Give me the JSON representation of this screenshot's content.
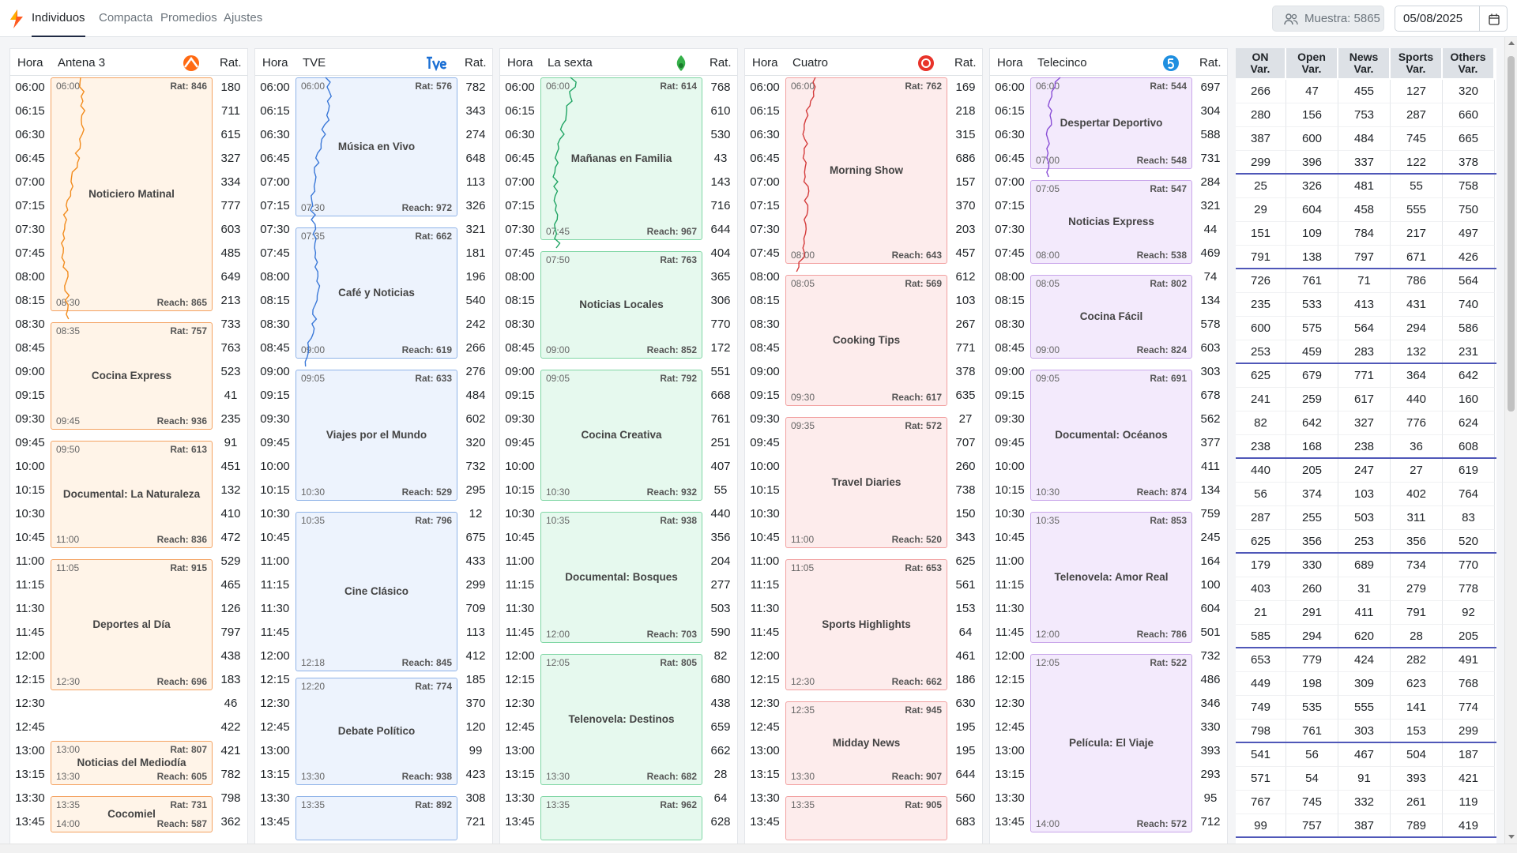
{
  "app": {
    "nav": [
      {
        "label": "Individuos",
        "active": true
      },
      {
        "label": "Compacta",
        "active": false
      },
      {
        "label": "Promedios",
        "active": false
      },
      {
        "label": "Ajustes",
        "active": false
      }
    ],
    "sample_label": "Muestra: 5865",
    "date_value": "05/08/2025"
  },
  "headers": {
    "hora": "Hora",
    "rat": "Rat."
  },
  "times": [
    "06:00",
    "06:15",
    "06:30",
    "06:45",
    "07:00",
    "07:15",
    "07:30",
    "07:45",
    "08:00",
    "08:15",
    "08:30",
    "08:45",
    "09:00",
    "09:15",
    "09:30",
    "09:45",
    "10:00",
    "10:15",
    "10:30",
    "10:45",
    "11:00",
    "11:15",
    "11:30",
    "11:45",
    "12:00",
    "12:15",
    "12:30",
    "12:45",
    "13:00",
    "13:15",
    "13:30",
    "13:45"
  ],
  "channels": [
    {
      "name": "Antena 3",
      "logo": "antena3-logo",
      "accent": "#f4a261",
      "bg": "#fff4e8",
      "line": "#f28c1e",
      "ratings": [
        180,
        711,
        615,
        327,
        334,
        777,
        603,
        485,
        649,
        213,
        733,
        763,
        523,
        41,
        235,
        91,
        451,
        132,
        410,
        472,
        529,
        465,
        126,
        797,
        438,
        183,
        46,
        422,
        421,
        782,
        798,
        362
      ],
      "programs": [
        {
          "title": "Noticiero Matinal",
          "start": "06:00",
          "end": "08:30",
          "rat": "Rat: 846",
          "reach": "Reach: 865",
          "s": 0,
          "d": 10
        },
        {
          "title": "Cocina Express",
          "start": "08:35",
          "end": "09:45",
          "rat": "Rat: 757",
          "reach": "Reach: 936",
          "s": 10.33,
          "d": 4.67
        },
        {
          "title": "Documental: La Naturaleza",
          "start": "09:50",
          "end": "11:00",
          "rat": "Rat: 613",
          "reach": "Reach: 836",
          "s": 15.33,
          "d": 4.67
        },
        {
          "title": "Deportes al Día",
          "start": "11:05",
          "end": "12:30",
          "rat": "Rat: 915",
          "reach": "Reach: 696",
          "s": 20.33,
          "d": 5.67
        },
        {
          "title": "Noticias del Mediodía",
          "start": "13:00",
          "end": "13:30",
          "rat": "Rat: 807",
          "reach": "Reach: 605",
          "s": 28,
          "d": 2
        },
        {
          "title": "Cocomiel",
          "start": "13:35",
          "end": "14:00",
          "rat": "Rat: 731",
          "reach": "Reach: 587",
          "s": 30.33,
          "d": 1.67
        }
      ]
    },
    {
      "name": "TVE",
      "logo": "tve-logo",
      "accent": "#8fb3e8",
      "bg": "#edf3fd",
      "line": "#3a78d8",
      "ratings": [
        782,
        343,
        274,
        648,
        113,
        326,
        321,
        181,
        196,
        540,
        242,
        266,
        276,
        484,
        602,
        320,
        732,
        295,
        12,
        675,
        433,
        299,
        709,
        113,
        412,
        185,
        370,
        120,
        99,
        423,
        308,
        721
      ],
      "programs": [
        {
          "title": "Música en Vivo",
          "start": "06:00",
          "end": "07:30",
          "rat": "Rat: 576",
          "reach": "Reach: 972",
          "s": 0,
          "d": 6
        },
        {
          "title": "Café y Noticias",
          "start": "07:35",
          "end": "09:00",
          "rat": "Rat: 662",
          "reach": "Reach: 619",
          "s": 6.33,
          "d": 5.67
        },
        {
          "title": "Viajes por el Mundo",
          "start": "09:05",
          "end": "10:30",
          "rat": "Rat: 633",
          "reach": "Reach: 529",
          "s": 12.33,
          "d": 5.67
        },
        {
          "title": "Cine Clásico",
          "start": "10:35",
          "end": "12:18",
          "rat": "Rat: 796",
          "reach": "Reach: 845",
          "s": 18.33,
          "d": 6.87
        },
        {
          "title": "Debate Político",
          "start": "12:20",
          "end": "13:30",
          "rat": "Rat: 774",
          "reach": "Reach: 938",
          "s": 25.33,
          "d": 4.67
        },
        {
          "title": "",
          "start": "13:35",
          "end": "",
          "rat": "Rat: 892",
          "reach": "",
          "s": 30.33,
          "d": 2
        }
      ]
    },
    {
      "name": "La sexta",
      "logo": "lasexta-logo",
      "accent": "#7fd6a4",
      "bg": "#e6f9ee",
      "line": "#1fa463",
      "ratings": [
        768,
        610,
        530,
        43,
        143,
        716,
        644,
        404,
        365,
        306,
        770,
        172,
        551,
        668,
        761,
        251,
        407,
        55,
        440,
        356,
        204,
        277,
        503,
        590,
        82,
        680,
        438,
        659,
        662,
        28,
        64,
        628
      ],
      "programs": [
        {
          "title": "Mañanas en Familia",
          "start": "06:00",
          "end": "07:45",
          "rat": "Rat: 614",
          "reach": "Reach: 967",
          "s": 0,
          "d": 7
        },
        {
          "title": "Noticias Locales",
          "start": "07:50",
          "end": "09:00",
          "rat": "Rat: 763",
          "reach": "Reach: 852",
          "s": 7.33,
          "d": 4.67
        },
        {
          "title": "Cocina Creativa",
          "start": "09:05",
          "end": "10:30",
          "rat": "Rat: 792",
          "reach": "Reach: 932",
          "s": 12.33,
          "d": 5.67
        },
        {
          "title": "Documental: Bosques",
          "start": "10:35",
          "end": "12:00",
          "rat": "Rat: 938",
          "reach": "Reach: 703",
          "s": 18.33,
          "d": 5.67
        },
        {
          "title": "Telenovela: Destinos",
          "start": "12:05",
          "end": "13:30",
          "rat": "Rat: 805",
          "reach": "Reach: 682",
          "s": 24.33,
          "d": 5.67
        },
        {
          "title": "",
          "start": "13:35",
          "end": "",
          "rat": "Rat: 962",
          "reach": "",
          "s": 30.33,
          "d": 2
        }
      ]
    },
    {
      "name": "Cuatro",
      "logo": "cuatro-logo",
      "accent": "#f2a0a0",
      "bg": "#fdecec",
      "line": "#d43b3b",
      "ratings": [
        169,
        218,
        315,
        686,
        157,
        370,
        203,
        457,
        612,
        103,
        267,
        771,
        378,
        635,
        27,
        707,
        260,
        738,
        150,
        343,
        625,
        561,
        153,
        64,
        461,
        186,
        630,
        195,
        195,
        644,
        560,
        683
      ],
      "programs": [
        {
          "title": "Morning Show",
          "start": "06:00",
          "end": "08:00",
          "rat": "Rat: 762",
          "reach": "Reach: 643",
          "s": 0,
          "d": 8
        },
        {
          "title": "Cooking Tips",
          "start": "08:05",
          "end": "09:30",
          "rat": "Rat: 569",
          "reach": "Reach: 617",
          "s": 8.33,
          "d": 5.67
        },
        {
          "title": "Travel Diaries",
          "start": "09:35",
          "end": "11:00",
          "rat": "Rat: 572",
          "reach": "Reach: 520",
          "s": 14.33,
          "d": 5.67
        },
        {
          "title": "Sports Highlights",
          "start": "11:05",
          "end": "12:30",
          "rat": "Rat: 653",
          "reach": "Reach: 662",
          "s": 20.33,
          "d": 5.67
        },
        {
          "title": "Midday News",
          "start": "12:35",
          "end": "13:30",
          "rat": "Rat: 945",
          "reach": "Reach: 907",
          "s": 26.33,
          "d": 3.67
        },
        {
          "title": "",
          "start": "13:35",
          "end": "",
          "rat": "Rat: 905",
          "reach": "",
          "s": 30.33,
          "d": 2
        }
      ]
    },
    {
      "name": "Telecinco",
      "logo": "telecinco-logo",
      "accent": "#c9a6ea",
      "bg": "#f3eafc",
      "line": "#8a4fd6",
      "ratings": [
        697,
        304,
        588,
        731,
        284,
        321,
        44,
        469,
        74,
        134,
        578,
        603,
        303,
        678,
        562,
        377,
        411,
        134,
        759,
        245,
        164,
        100,
        604,
        501,
        732,
        486,
        346,
        330,
        393,
        293,
        95,
        712
      ],
      "programs": [
        {
          "title": "Despertar Deportivo",
          "start": "06:00",
          "end": "07:00",
          "rat": "Rat: 544",
          "reach": "Reach: 548",
          "s": 0,
          "d": 4
        },
        {
          "title": "Noticias Express",
          "start": "07:05",
          "end": "08:00",
          "rat": "Rat: 547",
          "reach": "Reach: 538",
          "s": 4.33,
          "d": 3.67
        },
        {
          "title": "Cocina Fácil",
          "start": "08:05",
          "end": "09:00",
          "rat": "Rat: 802",
          "reach": "Reach: 824",
          "s": 8.33,
          "d": 3.67
        },
        {
          "title": "Documental: Océanos",
          "start": "09:05",
          "end": "10:30",
          "rat": "Rat: 691",
          "reach": "Reach: 874",
          "s": 12.33,
          "d": 5.67
        },
        {
          "title": "Telenovela: Amor Real",
          "start": "10:35",
          "end": "12:00",
          "rat": "Rat: 853",
          "reach": "Reach: 786",
          "s": 18.33,
          "d": 5.67
        },
        {
          "title": "Película: El Viaje",
          "start": "12:05",
          "end": "14:00",
          "rat": "Rat: 522",
          "reach": "Reach: 572",
          "s": 24.33,
          "d": 7.67
        }
      ]
    }
  ],
  "aggregate": {
    "headers": [
      {
        "l1": "ON",
        "l2": "Var."
      },
      {
        "l1": "Open",
        "l2": "Var."
      },
      {
        "l1": "News",
        "l2": "Var."
      },
      {
        "l1": "Sports",
        "l2": "Var."
      },
      {
        "l1": "Others",
        "l2": "Var."
      }
    ],
    "rows": [
      [
        266,
        47,
        455,
        127,
        320
      ],
      [
        280,
        156,
        753,
        287,
        660
      ],
      [
        387,
        600,
        484,
        745,
        665
      ],
      [
        299,
        396,
        337,
        122,
        378
      ],
      [
        25,
        326,
        481,
        55,
        758
      ],
      [
        29,
        604,
        458,
        555,
        750
      ],
      [
        151,
        109,
        784,
        217,
        497
      ],
      [
        791,
        138,
        797,
        671,
        426
      ],
      [
        726,
        761,
        71,
        786,
        564
      ],
      [
        235,
        533,
        413,
        431,
        740
      ],
      [
        600,
        575,
        564,
        294,
        586
      ],
      [
        253,
        459,
        283,
        132,
        231
      ],
      [
        625,
        679,
        771,
        364,
        642
      ],
      [
        241,
        259,
        617,
        440,
        160
      ],
      [
        82,
        642,
        327,
        776,
        624
      ],
      [
        238,
        168,
        238,
        36,
        608
      ],
      [
        440,
        205,
        247,
        27,
        619
      ],
      [
        56,
        374,
        103,
        402,
        764
      ],
      [
        287,
        255,
        503,
        311,
        83
      ],
      [
        625,
        356,
        253,
        356,
        520
      ],
      [
        179,
        330,
        689,
        734,
        770
      ],
      [
        403,
        260,
        31,
        279,
        778
      ],
      [
        21,
        291,
        411,
        791,
        92
      ],
      [
        585,
        294,
        620,
        28,
        205
      ],
      [
        653,
        779,
        424,
        282,
        491
      ],
      [
        449,
        198,
        309,
        623,
        768
      ],
      [
        749,
        535,
        555,
        141,
        774
      ],
      [
        798,
        761,
        303,
        153,
        299
      ],
      [
        541,
        56,
        467,
        504,
        187
      ],
      [
        571,
        54,
        91,
        393,
        421
      ],
      [
        767,
        745,
        332,
        261,
        119
      ],
      [
        99,
        757,
        387,
        789,
        419
      ]
    ]
  }
}
